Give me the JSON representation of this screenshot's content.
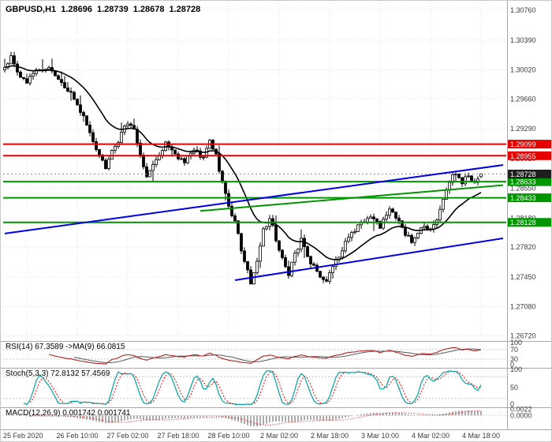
{
  "header": {
    "symbol": "GBPUSD,H1",
    "open": "1.28696",
    "high": "1.28739",
    "low": "1.28678",
    "close": "1.28728"
  },
  "colors": {
    "background": "#ffffff",
    "grid": "#e4e4e4",
    "candle_up_fill": "#ffffff",
    "candle_down_fill": "#000000",
    "candle_outline": "#000000",
    "current_price_tag": "#1f1f1f",
    "resistance": "#e60000",
    "support": "#009600",
    "channel": "#0000e6",
    "axis_text": "#3c3c3c"
  },
  "chart_data": [
    {
      "panel": "main",
      "type": "candlestick",
      "title": "GBPUSD,H1",
      "symbol": "GBPUSD",
      "timeframe": "H1",
      "current_bar": {
        "open": 1.28696,
        "high": 1.28739,
        "low": 1.28678,
        "close": 1.28728
      },
      "current_price": 1.28728,
      "ylim": [
        1.2672,
        1.3076
      ],
      "y_ticks": [
        1.3076,
        1.3039,
        1.3002,
        1.2966,
        1.2929,
        1.2892,
        1.2855,
        1.2818,
        1.2782,
        1.2745,
        1.2708,
        1.2672
      ],
      "x_tick_labels": [
        "25 Feb 2020",
        "26 Feb 10:00",
        "27 Feb 02:00",
        "27 Feb 18:00",
        "28 Feb 10:00",
        "2 Mar 02:00",
        "2 Mar 18:00",
        "3 Mar 10:00",
        "4 Mar 02:00",
        "4 Mar 18:00"
      ],
      "levels": [
        {
          "price": 1.29099,
          "role": "resistance",
          "color": "#e60000"
        },
        {
          "price": 1.28955,
          "role": "resistance",
          "color": "#e60000"
        },
        {
          "price": 1.28633,
          "role": "support",
          "color": "#009600"
        },
        {
          "price": 1.28433,
          "role": "support",
          "color": "#009600"
        },
        {
          "price": 1.28128,
          "role": "support",
          "color": "#009600"
        }
      ],
      "trend_lines": [
        {
          "name": "ascending-channel-upper",
          "from_index": 0,
          "from_price": 1.2799,
          "to_index": 158,
          "to_price": 1.2884,
          "color": "#0000e6"
        },
        {
          "name": "ascending-channel-lower",
          "from_index": 73,
          "from_price": 1.2741,
          "to_index": 158,
          "to_price": 1.2793,
          "color": "#0000e6"
        },
        {
          "name": "green-trendline",
          "from_index": 62,
          "from_price": 1.2827,
          "to_index": 158,
          "to_price": 1.2859,
          "color": "#009600"
        }
      ],
      "ma": {
        "period": 20,
        "color": "#000000"
      },
      "candles": {
        "count": 152,
        "close_path_anchors": [
          [
            0,
            1.3002
          ],
          [
            2,
            1.3018
          ],
          [
            4,
            1.2996
          ],
          [
            7,
            1.2988
          ],
          [
            10,
            1.3
          ],
          [
            13,
            1.3006
          ],
          [
            17,
            1.2992
          ],
          [
            21,
            1.2972
          ],
          [
            25,
            1.2946
          ],
          [
            28,
            1.2916
          ],
          [
            30,
            1.2896
          ],
          [
            32,
            1.2882
          ],
          [
            34,
            1.29
          ],
          [
            37,
            1.2922
          ],
          [
            39,
            1.2938
          ],
          [
            41,
            1.2925
          ],
          [
            43,
            1.2898
          ],
          [
            45,
            1.2868
          ],
          [
            48,
            1.289
          ],
          [
            51,
            1.2912
          ],
          [
            54,
            1.2898
          ],
          [
            57,
            1.2888
          ],
          [
            60,
            1.2902
          ],
          [
            63,
            1.2892
          ],
          [
            65,
            1.2914
          ],
          [
            67,
            1.2896
          ],
          [
            69,
            1.2862
          ],
          [
            71,
            1.2836
          ],
          [
            73,
            1.2812
          ],
          [
            75,
            1.278
          ],
          [
            77,
            1.2752
          ],
          [
            78,
            1.2738
          ],
          [
            80,
            1.2764
          ],
          [
            82,
            1.2802
          ],
          [
            84,
            1.282
          ],
          [
            86,
            1.2792
          ],
          [
            88,
            1.2768
          ],
          [
            90,
            1.275
          ],
          [
            92,
            1.2774
          ],
          [
            94,
            1.279
          ],
          [
            96,
            1.277
          ],
          [
            98,
            1.2758
          ],
          [
            100,
            1.2746
          ],
          [
            102,
            1.274
          ],
          [
            104,
            1.2758
          ],
          [
            107,
            1.278
          ],
          [
            110,
            1.2798
          ],
          [
            113,
            1.2814
          ],
          [
            116,
            1.2822
          ],
          [
            119,
            1.2808
          ],
          [
            122,
            1.2826
          ],
          [
            125,
            1.2816
          ],
          [
            127,
            1.2798
          ],
          [
            129,
            1.279
          ],
          [
            131,
            1.2798
          ],
          [
            133,
            1.2808
          ],
          [
            135,
            1.2802
          ],
          [
            137,
            1.2818
          ],
          [
            139,
            1.2842
          ],
          [
            141,
            1.2864
          ],
          [
            143,
            1.2874
          ],
          [
            145,
            1.2862
          ],
          [
            147,
            1.287
          ],
          [
            149,
            1.2864
          ],
          [
            151,
            1.28728
          ]
        ]
      }
    },
    {
      "panel": "indicator",
      "type": "line",
      "name": "RSI",
      "params": "RSI(14)",
      "value": 67.3589,
      "ma_params": "MA(9)",
      "ma_value": 66.0815,
      "header_text": "RSI(14) 67.3589 ->MA(9) 66.0815",
      "ylim": [
        0,
        100
      ],
      "y_ticks": [
        100,
        70,
        30,
        0
      ],
      "levels": [
        70,
        30
      ],
      "colors": {
        "main": "#b22222",
        "ma": "#5a5a5a"
      }
    },
    {
      "panel": "indicator",
      "type": "line",
      "name": "Stochastic",
      "params": "Stoch(5,3,3)",
      "k_value": 72.8132,
      "d_value": 57.4569,
      "header_text": "Stoch(5,3,3) 72.8132 57.4569",
      "ylim": [
        0,
        100
      ],
      "y_ticks": [
        100,
        50,
        0
      ],
      "levels": [
        80,
        20
      ],
      "colors": {
        "main": "#00a3a3",
        "signal": "#ff0000"
      }
    },
    {
      "panel": "indicator",
      "type": "histogram+line",
      "name": "MACD",
      "params": "MACD(12,26,9)",
      "macd_value": 0.001742,
      "signal_value": 0.001741,
      "header_text": "MACD(12,26,9) 0.001742 0.001741",
      "y_ticks": [
        0.0022,
        0
      ],
      "colors": {
        "hist": "#5a5a5a",
        "signal": "#ff0000"
      }
    }
  ]
}
